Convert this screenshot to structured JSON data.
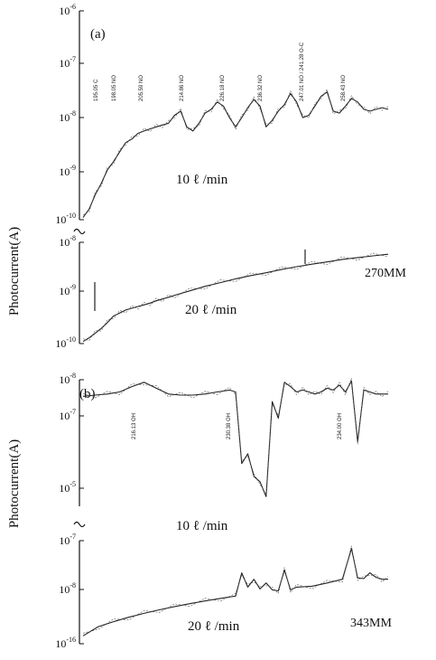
{
  "chart_data": [
    {
      "type": "line",
      "panel_label": "(a)",
      "ylabel": "Photocurrent(A)",
      "yscale": "log",
      "grid": false,
      "sample": "270MM",
      "subplots": [
        {
          "annotation": "10 ℓ /min",
          "ylim": [
            1e-10,
            1e-06
          ],
          "yticks": [
            {
              "base": "10",
              "exp": "-10"
            },
            {
              "base": "10",
              "exp": "-9"
            },
            {
              "base": "10",
              "exp": "-8"
            },
            {
              "base": "10",
              "exp": "-7"
            },
            {
              "base": "10",
              "exp": "-6"
            }
          ],
          "peak_labels": [
            "195.05 C",
            "198.05 NO",
            "205.59 NO",
            "214.86 NO",
            "226.18 NO",
            "236.32 NO",
            "247.01 NO / 241.28 O-C",
            "258.43 NO"
          ],
          "series": [
            {
              "x": [
                0,
                2,
                4,
                6,
                8,
                10,
                12,
                14,
                16,
                18,
                20,
                22,
                24,
                26,
                28,
                30,
                32,
                34,
                36,
                38,
                40,
                42,
                44,
                46,
                48,
                50,
                52,
                54,
                56,
                58,
                60,
                62,
                64,
                66,
                68,
                70,
                72,
                74,
                76,
                78,
                80,
                82,
                84,
                86,
                88,
                90,
                92,
                94,
                96,
                98,
                100
              ],
              "y": [
                1.1e-10,
                1.6e-10,
                3e-10,
                5e-10,
                9e-10,
                1.3e-09,
                2e-09,
                3e-09,
                3.5e-09,
                4.5e-09,
                5e-09,
                5.5e-09,
                6e-09,
                6.5e-09,
                7e-09,
                1e-08,
                1.2e-08,
                6e-09,
                5e-09,
                7e-09,
                1.1e-08,
                1.3e-08,
                1.8e-08,
                1.5e-08,
                9e-09,
                6e-09,
                9e-09,
                1.4e-08,
                2e-08,
                1.5e-08,
                6e-09,
                8e-09,
                1.2e-08,
                1.6e-08,
                2.6e-08,
                1.8e-08,
                9e-09,
                1e-08,
                1.5e-08,
                2.3e-08,
                2.8e-08,
                1.2e-08,
                1.1e-08,
                1.5e-08,
                2.1e-08,
                1.8e-08,
                1.3e-08,
                1.2e-08,
                1.3e-08,
                1.4e-08,
                1.3e-08
              ]
            }
          ]
        },
        {
          "annotation": "20 ℓ /min",
          "ylim": [
            1e-10,
            1e-08
          ],
          "yticks": [
            {
              "base": "10",
              "exp": "-10"
            },
            {
              "base": "10",
              "exp": "-9"
            },
            {
              "base": "10",
              "exp": "-8"
            }
          ],
          "series": [
            {
              "x": [
                0,
                2,
                4,
                6,
                8,
                10,
                12,
                14,
                16,
                18,
                20,
                22,
                24,
                26,
                28,
                30,
                35,
                40,
                45,
                50,
                55,
                60,
                65,
                70,
                75,
                80,
                85,
                90,
                95,
                100
              ],
              "y": [
                1.1e-10,
                1.3e-10,
                1.6e-10,
                2e-10,
                2.6e-10,
                3.5e-10,
                4e-10,
                4.6e-10,
                5e-10,
                5.4e-10,
                5.8e-10,
                6.3e-10,
                7e-10,
                7.6e-10,
                8.2e-10,
                9e-10,
                1.1e-09,
                1.35e-09,
                1.6e-09,
                1.9e-09,
                2.2e-09,
                2.5e-09,
                2.9e-09,
                3.3e-09,
                3.7e-09,
                4.1e-09,
                4.6e-09,
                5e-09,
                5.4e-09,
                5.8e-09
              ]
            }
          ]
        }
      ]
    },
    {
      "type": "line",
      "panel_label": "(b)",
      "ylabel": "Photocurrent(A)",
      "yscale": "log",
      "grid": false,
      "sample": "343MM",
      "subplots": [
        {
          "annotation": "10 ℓ /min",
          "ylim": [
            1e-09,
            1e-08
          ],
          "yticks": [
            {
              "base": "10",
              "exp": "-5"
            },
            {
              "base": "10",
              "exp": "-7"
            },
            {
              "base": "10",
              "exp": "-8"
            }
          ],
          "peak_labels": [
            "216.13 OH",
            "230.38 OH",
            "234.00 OH"
          ],
          "series": [
            {
              "x": [
                0,
                4,
                8,
                12,
                16,
                20,
                24,
                28,
                32,
                36,
                40,
                44,
                48,
                50,
                52,
                54,
                56,
                58,
                60,
                62,
                64,
                66,
                68,
                70,
                72,
                74,
                76,
                78,
                80,
                82,
                84,
                86,
                88,
                90,
                92,
                94,
                96,
                98,
                100
              ],
              "y": [
                1e-05,
                1.05e-05,
                1.1e-05,
                1.2e-05,
                1.5e-05,
                1.8e-05,
                1.4e-05,
                1.1e-05,
                1.05e-05,
                1.05e-05,
                1.1e-05,
                1.2e-05,
                1.3e-05,
                1.2e-05,
                6e-07,
                9e-07,
                3.5e-07,
                2.8e-07,
                1.5e-07,
                8e-06,
                4e-06,
                1.8e-05,
                1.5e-05,
                1.2e-05,
                1.3e-05,
                1.2e-05,
                1.1e-05,
                1.2e-05,
                1.4e-05,
                1.3e-05,
                1.6e-05,
                1.2e-05,
                1.9e-05,
                1.5e-06,
                1.3e-05,
                1.2e-05,
                1.1e-05,
                1.1e-05,
                1.1e-05
              ]
            }
          ]
        },
        {
          "annotation": "20 ℓ /min",
          "ylim": [
            1e-16,
            1e-07
          ],
          "yticks": [
            {
              "base": "10",
              "exp": "-16"
            },
            {
              "base": "10",
              "exp": "-8"
            },
            {
              "base": "10",
              "exp": "-7"
            }
          ],
          "series": [
            {
              "x": [
                0,
                5,
                10,
                15,
                20,
                25,
                30,
                35,
                40,
                45,
                50,
                52,
                54,
                56,
                58,
                60,
                62,
                64,
                66,
                68,
                70,
                75,
                80,
                85,
                88,
                90,
                92,
                94,
                96,
                98,
                100
              ],
              "y": [
                1e-09,
                1.3e-09,
                1.5e-09,
                1.7e-09,
                1.9e-09,
                2.1e-09,
                2.3e-09,
                2.5e-09,
                2.7e-09,
                2.9e-09,
                3.1e-09,
                6e-09,
                4e-09,
                5e-09,
                3.8e-09,
                4.5e-09,
                3.7e-09,
                3.6e-09,
                6.5e-09,
                3.7e-09,
                4e-09,
                4.1e-09,
                4.5e-09,
                5e-09,
                1.2e-08,
                5.2e-09,
                5.1e-09,
                6e-09,
                5.3e-09,
                5e-09,
                5e-09
              ]
            }
          ]
        }
      ]
    }
  ]
}
